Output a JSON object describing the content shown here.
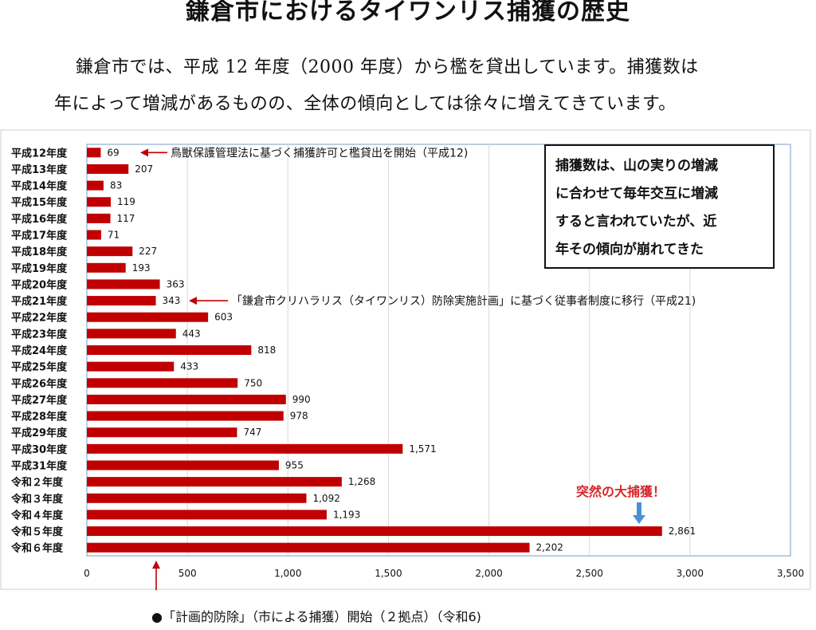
{
  "title": "鎌倉市におけるタイワンリス捕獲の歴史",
  "intro": {
    "line1": "鎌倉市では、平成 12 年度（2000 年度）から檻を貸出しています。捕獲数は",
    "line2": "年によって増減があるものの、全体の傾向としては徐々に増えてきています。"
  },
  "chart_data": {
    "type": "bar",
    "orientation": "horizontal",
    "categories": [
      "平成12年度",
      "平成13年度",
      "平成14年度",
      "平成15年度",
      "平成16年度",
      "平成17年度",
      "平成18年度",
      "平成19年度",
      "平成20年度",
      "平成21年度",
      "平成22年度",
      "平成23年度",
      "平成24年度",
      "平成25年度",
      "平成26年度",
      "平成27年度",
      "平成28年度",
      "平成29年度",
      "平成30年度",
      "平成31年度",
      "令和２年度",
      "令和３年度",
      "令和４年度",
      "令和５年度",
      "令和６年度"
    ],
    "values": [
      69,
      207,
      83,
      119,
      117,
      71,
      227,
      193,
      363,
      343,
      603,
      443,
      818,
      433,
      750,
      990,
      978,
      747,
      1571,
      955,
      1268,
      1092,
      1193,
      2861,
      2202
    ],
    "value_labels": [
      "69",
      "207",
      "83",
      "119",
      "117",
      "71",
      "227",
      "193",
      "363",
      "343",
      "603",
      "443",
      "818",
      "433",
      "750",
      "990",
      "978",
      "747",
      "1,571",
      "955",
      "1,268",
      "1,092",
      "1,193",
      "2,861",
      "2,202"
    ],
    "xlim": [
      0,
      3500
    ],
    "xticks": [
      0,
      500,
      1000,
      1500,
      2000,
      2500,
      3000,
      3500
    ],
    "xtick_labels": [
      "0",
      "500",
      "1,000",
      "1,500",
      "2,000",
      "2,500",
      "3,000",
      "3,500"
    ],
    "grid": true,
    "bar_color": "#c00000",
    "annotations": [
      {
        "category": "平成12年度",
        "text": "鳥獣保護管理法に基づく捕獲許可と檻貸出を開始（平成12)",
        "arrow_color": "#c00000"
      },
      {
        "category": "平成21年度",
        "text": "「鎌倉市クリハラリス（タイワンリス）防除実施計画」に基づく従事者制度に移行（平成21)",
        "arrow_color": "#c00000"
      },
      {
        "category": "令和５年度",
        "text": "突然の大捕獲！",
        "text_color": "#d8262a",
        "arrow_color": "#4a90d9"
      }
    ],
    "note_box": [
      "捕獲数は、山の実りの増減",
      "に合わせて毎年交互に増減",
      "すると言われていたが、近",
      "年その傾向が崩れてきた"
    ]
  },
  "footer": "●「計画的防除」（市による捕獲）開始（２拠点）（令和6)"
}
